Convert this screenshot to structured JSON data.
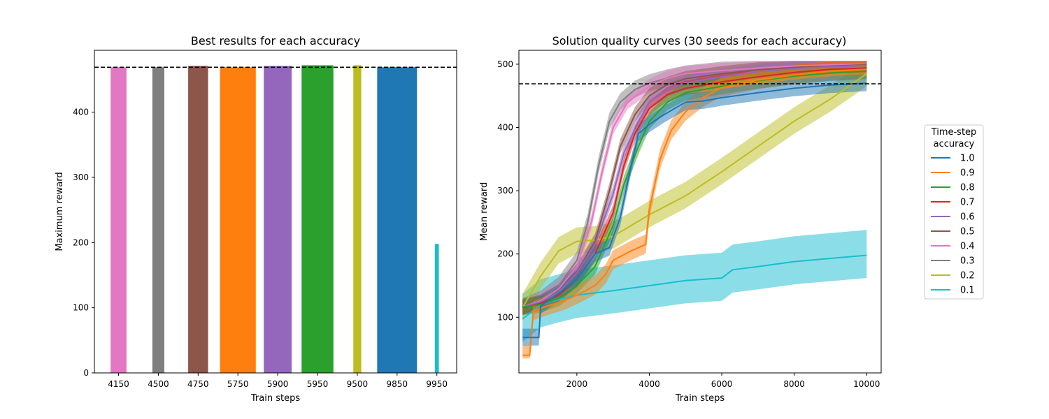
{
  "chart_data": [
    {
      "type": "bar",
      "title": "Best results for each accuracy",
      "xlabel": "Train steps",
      "ylabel": "Maximum reward",
      "ylim": [
        0,
        495
      ],
      "yticks": [
        0,
        100,
        200,
        300,
        400
      ],
      "reference_line": 469,
      "categories": [
        "4150",
        "4500",
        "4750",
        "5750",
        "5900",
        "5950",
        "9500",
        "9850",
        "9950"
      ],
      "values": [
        469,
        469,
        471,
        469,
        471,
        472,
        472,
        469,
        198
      ],
      "colors": [
        "#e377c2",
        "#7f7f7f",
        "#8c564b",
        "#ff7f0e",
        "#9467bd",
        "#2ca02c",
        "#bcbd22",
        "#1f77b4",
        "#17becf"
      ],
      "bar_widths": [
        0.4,
        0.3,
        0.5,
        0.9,
        0.7,
        0.8,
        0.2,
        1.0,
        0.1
      ]
    },
    {
      "type": "line",
      "title": "Solution quality curves (30 seeds for each accuracy)",
      "xlabel": "Train steps",
      "ylabel": "Mean reward",
      "xlim": [
        400,
        10400
      ],
      "ylim": [
        12,
        522
      ],
      "xticks": [
        2000,
        4000,
        6000,
        8000,
        10000
      ],
      "yticks": [
        100,
        200,
        300,
        400,
        500
      ],
      "reference_line": 469,
      "legend_title": "Time-step\naccuracy",
      "legend_title_lines": [
        "Time-step",
        "accuracy"
      ],
      "legend_position": "right, outside",
      "series": [
        {
          "name": "1.0",
          "color": "#1f77b4",
          "points": [
            [
              500,
              68
            ],
            [
              950,
              68
            ],
            [
              1000,
              118
            ],
            [
              1500,
              138
            ],
            [
              2000,
              160
            ],
            [
              2500,
              200
            ],
            [
              2900,
              210
            ],
            [
              3200,
              258
            ],
            [
              3500,
              340
            ],
            [
              3700,
              390
            ],
            [
              4000,
              405
            ],
            [
              4400,
              420
            ],
            [
              5000,
              440
            ],
            [
              5500,
              442
            ],
            [
              6000,
              447
            ],
            [
              7000,
              455
            ],
            [
              8000,
              462
            ],
            [
              9000,
              467
            ],
            [
              10000,
              470
            ]
          ],
          "band": 14
        },
        {
          "name": "0.9",
          "color": "#ff7f0e",
          "points": [
            [
              500,
              40
            ],
            [
              700,
              40
            ],
            [
              800,
              110
            ],
            [
              1200,
              118
            ],
            [
              1600,
              125
            ],
            [
              2000,
              135
            ],
            [
              2500,
              150
            ],
            [
              2800,
              168
            ],
            [
              3000,
              190
            ],
            [
              3500,
              205
            ],
            [
              3900,
              215
            ],
            [
              4000,
              270
            ],
            [
              4300,
              350
            ],
            [
              4600,
              395
            ],
            [
              5000,
              425
            ],
            [
              5500,
              448
            ],
            [
              6000,
              463
            ],
            [
              7000,
              475
            ],
            [
              8000,
              483
            ],
            [
              9000,
              489
            ],
            [
              10000,
              492
            ]
          ],
          "band": 16
        },
        {
          "name": "0.8",
          "color": "#2ca02c",
          "points": [
            [
              500,
              116
            ],
            [
              1000,
              120
            ],
            [
              1500,
              130
            ],
            [
              2000,
              150
            ],
            [
              2500,
              180
            ],
            [
              3000,
              245
            ],
            [
              3300,
              310
            ],
            [
              3700,
              370
            ],
            [
              4000,
              410
            ],
            [
              4500,
              440
            ],
            [
              5000,
              455
            ],
            [
              6000,
              465
            ],
            [
              7000,
              474
            ],
            [
              8000,
              481
            ],
            [
              9000,
              486
            ],
            [
              10000,
              489
            ]
          ],
          "band": 14
        },
        {
          "name": "0.7",
          "color": "#d62728",
          "points": [
            [
              500,
              115
            ],
            [
              1000,
              122
            ],
            [
              1500,
              135
            ],
            [
              2000,
              160
            ],
            [
              2500,
              200
            ],
            [
              3000,
              265
            ],
            [
              3300,
              340
            ],
            [
              3600,
              390
            ],
            [
              4000,
              430
            ],
            [
              4500,
              452
            ],
            [
              5000,
              462
            ],
            [
              6000,
              472
            ],
            [
              7000,
              480
            ],
            [
              8000,
              487
            ],
            [
              9000,
              492
            ],
            [
              10000,
              494
            ]
          ],
          "band": 12
        },
        {
          "name": "0.6",
          "color": "#9467bd",
          "points": [
            [
              500,
              116
            ],
            [
              1000,
              124
            ],
            [
              1500,
              140
            ],
            [
              2000,
              170
            ],
            [
              2500,
              215
            ],
            [
              3000,
              295
            ],
            [
              3300,
              360
            ],
            [
              3700,
              410
            ],
            [
              4000,
              440
            ],
            [
              4500,
              460
            ],
            [
              5000,
              470
            ],
            [
              6000,
              480
            ],
            [
              7000,
              488
            ],
            [
              8000,
              493
            ],
            [
              9000,
              496
            ],
            [
              10000,
              498
            ]
          ],
          "band": 12
        },
        {
          "name": "0.5",
          "color": "#8c564b",
          "points": [
            [
              500,
              115
            ],
            [
              1000,
              124
            ],
            [
              1500,
              140
            ],
            [
              2000,
              172
            ],
            [
              2500,
              220
            ],
            [
              2900,
              300
            ],
            [
              3200,
              370
            ],
            [
              3600,
              420
            ],
            [
              4000,
              450
            ],
            [
              4500,
              468
            ],
            [
              5000,
              477
            ],
            [
              6000,
              485
            ],
            [
              7000,
              491
            ],
            [
              8000,
              495
            ],
            [
              9000,
              497
            ],
            [
              10000,
              499
            ]
          ],
          "band": 12
        },
        {
          "name": "0.4",
          "color": "#e377c2",
          "points": [
            [
              500,
              116
            ],
            [
              1000,
              126
            ],
            [
              1500,
              145
            ],
            [
              2000,
              180
            ],
            [
              2400,
              250
            ],
            [
              2700,
              330
            ],
            [
              3000,
              400
            ],
            [
              3400,
              440
            ],
            [
              4000,
              465
            ],
            [
              4500,
              478
            ],
            [
              5000,
              485
            ],
            [
              6000,
              490
            ],
            [
              7000,
              494
            ],
            [
              8000,
              497
            ],
            [
              9000,
              499
            ],
            [
              10000,
              500
            ]
          ],
          "band": 12
        },
        {
          "name": "0.3",
          "color": "#7f7f7f",
          "points": [
            [
              500,
              116
            ],
            [
              1000,
              128
            ],
            [
              1500,
              150
            ],
            [
              2000,
              190
            ],
            [
              2300,
              250
            ],
            [
              2600,
              340
            ],
            [
              2900,
              410
            ],
            [
              3200,
              440
            ],
            [
              3600,
              460
            ],
            [
              4000,
              470
            ],
            [
              4500,
              478
            ],
            [
              5000,
              484
            ],
            [
              6000,
              490
            ],
            [
              7000,
              494
            ],
            [
              8000,
              496
            ],
            [
              9000,
              498
            ],
            [
              10000,
              499
            ]
          ],
          "band": 14
        },
        {
          "name": "0.2",
          "color": "#bcbd22",
          "points": [
            [
              500,
              115
            ],
            [
              1000,
              165
            ],
            [
              1500,
              205
            ],
            [
              2000,
              220
            ],
            [
              2500,
              222
            ],
            [
              3000,
              228
            ],
            [
              3500,
              245
            ],
            [
              4000,
              262
            ],
            [
              5000,
              292
            ],
            [
              6000,
              330
            ],
            [
              7000,
              370
            ],
            [
              8000,
              410
            ],
            [
              9000,
              445
            ],
            [
              10000,
              485
            ]
          ],
          "band": 22
        },
        {
          "name": "0.1",
          "color": "#17becf",
          "points": [
            [
              500,
              97
            ],
            [
              1000,
              120
            ],
            [
              1500,
              128
            ],
            [
              2000,
              135
            ],
            [
              3000,
              142
            ],
            [
              4000,
              150
            ],
            [
              5000,
              158
            ],
            [
              6000,
              162
            ],
            [
              6300,
              175
            ],
            [
              7000,
              180
            ],
            [
              8000,
              188
            ],
            [
              9000,
              193
            ],
            [
              10000,
              198
            ]
          ],
          "band": 40
        }
      ]
    }
  ]
}
